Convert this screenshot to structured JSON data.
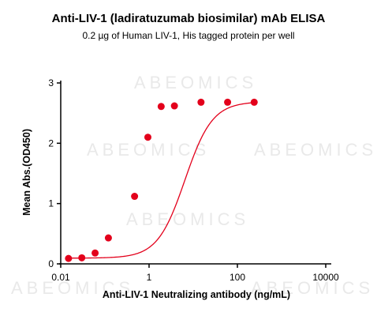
{
  "chart_data": {
    "type": "scatter",
    "title": "Anti-LIV-1 (ladiratuzumab biosimilar) mAb ELISA",
    "subtitle": "0.2 µg of Human LIV-1, His tagged protein per well",
    "xlabel": "Anti-LIV-1 Neutralizing antibody (ng/mL)",
    "ylabel": "Mean Abs.(OD450)",
    "xscale": "log",
    "xlim": [
      0.01,
      10000
    ],
    "ylim": [
      0,
      3
    ],
    "x_ticks": [
      0.01,
      1,
      100,
      10000
    ],
    "x_tick_labels": [
      "0.01",
      "1",
      "100",
      "10000"
    ],
    "y_ticks": [
      0,
      1,
      2,
      3
    ],
    "y_tick_labels": [
      "0",
      "1",
      "2",
      "3"
    ],
    "series": [
      {
        "x": [
          0.015,
          0.03,
          0.06,
          0.12,
          0.47,
          0.94,
          1.88,
          3.75,
          15,
          60,
          240
        ],
        "y": [
          0.09,
          0.1,
          0.18,
          0.43,
          1.12,
          2.1,
          2.61,
          2.62,
          2.68,
          2.68,
          2.68
        ],
        "color": "#e3001b",
        "fit": "4PL sigmoid curve"
      }
    ],
    "grid": false,
    "watermark": "ABEOMICS"
  }
}
